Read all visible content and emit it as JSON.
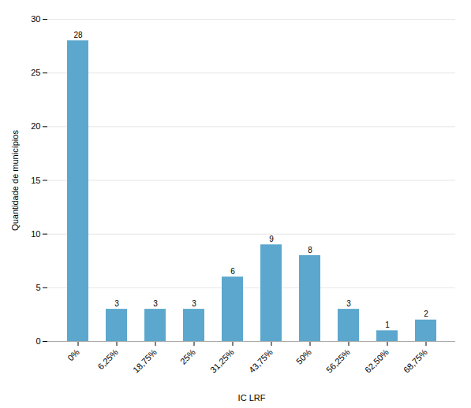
{
  "chart_data": {
    "type": "bar",
    "categories": [
      "0%",
      "6,25%",
      "18,75%",
      "25%",
      "31,25%",
      "43,75%",
      "50%",
      "56,25%",
      "62,50%",
      "68,75%"
    ],
    "values": [
      28,
      3,
      3,
      3,
      6,
      9,
      8,
      3,
      1,
      2
    ],
    "color": "#5BA7CE",
    "xlabel": "IC LRF",
    "ylabel": "Quantidade de municípios",
    "ylim": [
      0,
      30
    ],
    "yticks": [
      0,
      5,
      10,
      15,
      20,
      25,
      30
    ],
    "grid": true,
    "data_labels": true
  }
}
